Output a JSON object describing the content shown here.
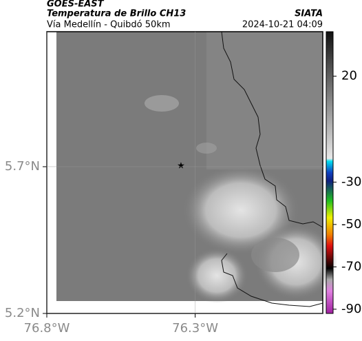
{
  "header": {
    "satellite": "GOES-EAST",
    "product": "Temperatura de Brillo CH13",
    "region": "Vía Medellín - Quibdó 50km",
    "source": "SIATA",
    "datetime": "2024-10-21 04:09"
  },
  "map": {
    "latlim": [
      5.2,
      6.16
    ],
    "lonlim": [
      -76.8,
      -75.87
    ],
    "latticks": [
      {
        "value": 5.7,
        "label": "5.7°N"
      },
      {
        "value": 5.2,
        "label": "5.2°N"
      }
    ],
    "lonticks": [
      {
        "value": -76.8,
        "label": "76.8°W"
      },
      {
        "value": -76.3,
        "label": "76.3°W"
      }
    ]
  },
  "colorbar": {
    "lim": [
      -92,
      41
    ],
    "ticks": [
      20,
      -30,
      -50,
      -70,
      -90
    ]
  }
}
